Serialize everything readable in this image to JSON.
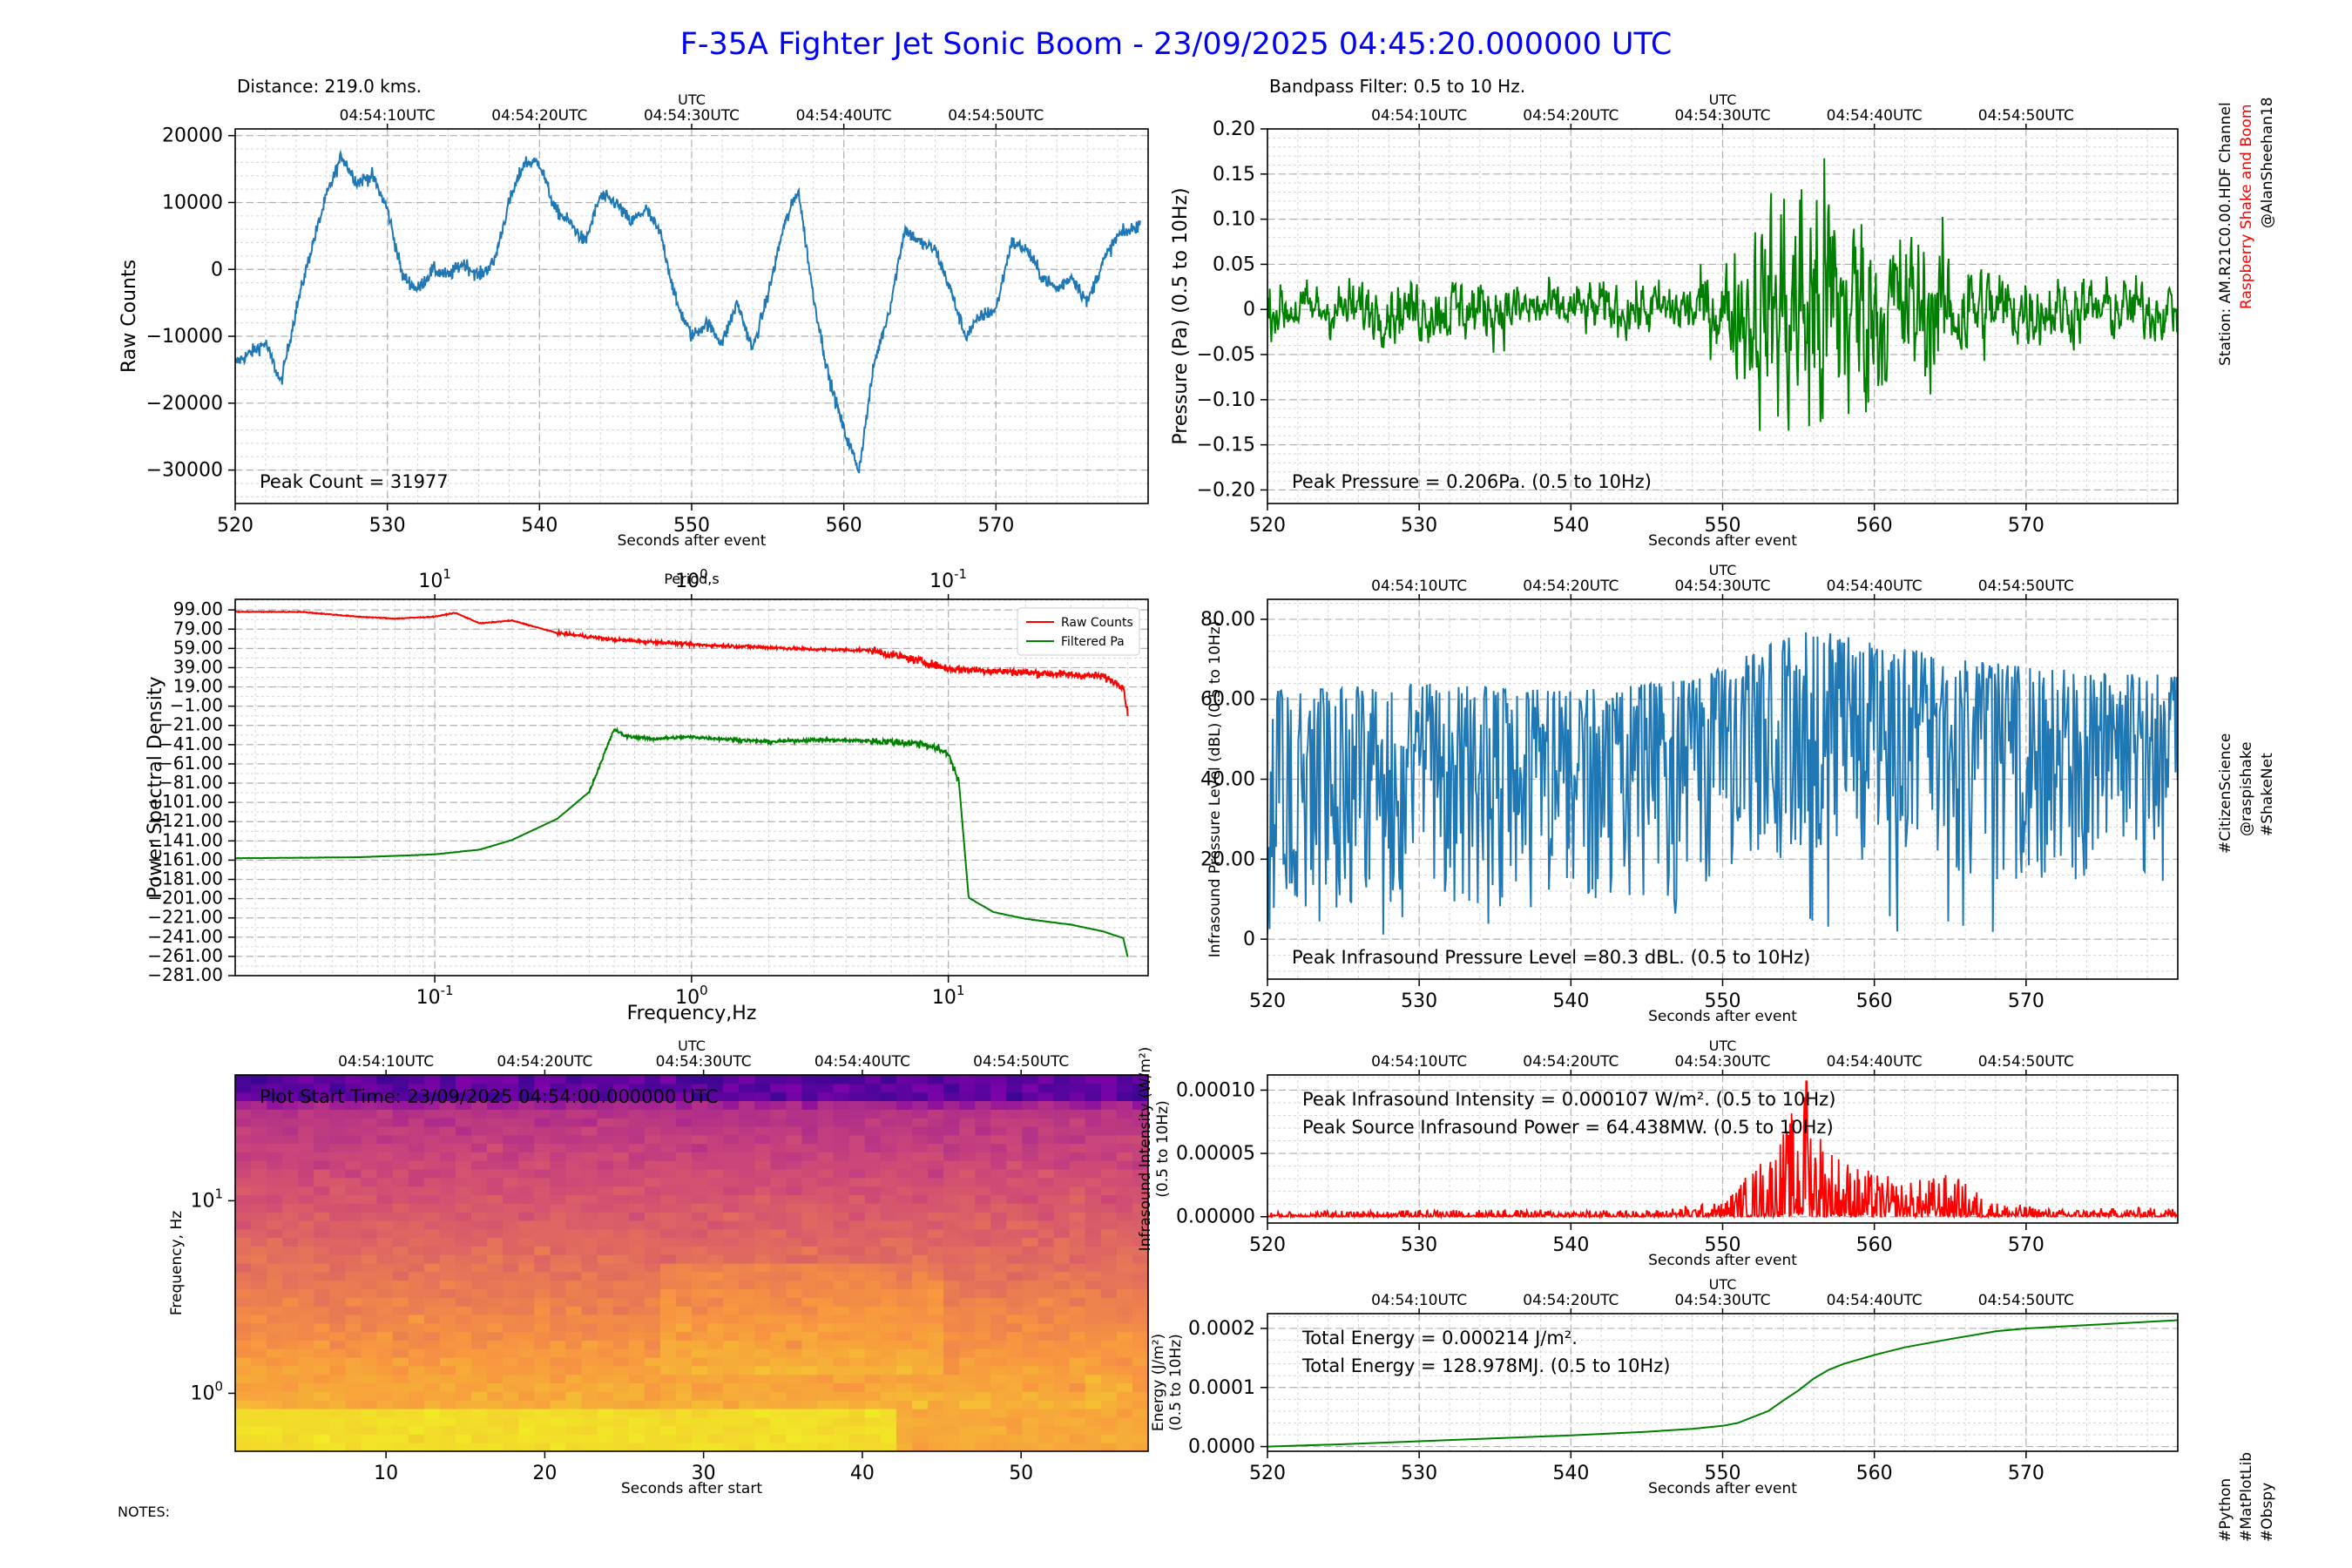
{
  "title": "F-35A Fighter Jet Sonic Boom - 23/09/2025 04:45:20.000000 UTC",
  "side_text": {
    "station": "Station: AM.R21C0.00.HDF Channel",
    "brand": "Raspberry Shake and Boom",
    "handle": "@AlanSheehan18",
    "hashtags_mid": [
      "#CitizenScience",
      "@raspishake",
      "#ShakeNet"
    ],
    "hashtags_bottom": [
      "#Python",
      "#MatPlotLib",
      "#Obspy"
    ]
  },
  "notes": "NOTES:",
  "colors": {
    "title": "#0000ff",
    "blue": "#1f77b4",
    "green": "#008000",
    "red": "#ff0000",
    "brand": "#ff0000"
  },
  "chart_data": [
    {
      "id": "raw",
      "type": "line",
      "top_label": "Distance: 219.0 kms.",
      "xlabel": "Seconds after event",
      "ylabel": "Raw Counts",
      "top_axis_label": "UTC",
      "top_ticks": [
        "04:54:10UTC",
        "04:54:20UTC",
        "04:54:30UTC",
        "04:54:40UTC",
        "04:54:50UTC"
      ],
      "top_tick_positions": [
        530,
        540,
        550,
        560,
        570
      ],
      "xlim": [
        520,
        580
      ],
      "ylim": [
        -35000,
        21000
      ],
      "xticks": [
        520,
        530,
        540,
        550,
        560,
        570
      ],
      "yticks": [
        -30000,
        -20000,
        -10000,
        0,
        10000,
        20000
      ],
      "annotation": "Peak Count = 31977",
      "color": "#1f77b4",
      "series": [
        {
          "x": [
            520,
            522,
            523,
            524,
            525,
            526,
            527,
            528,
            529,
            530,
            531,
            532,
            533,
            534,
            535,
            536,
            537,
            538,
            539,
            540,
            541,
            542,
            543,
            544,
            545,
            546,
            547,
            548,
            549,
            550,
            551,
            552,
            553,
            554,
            555,
            556,
            557,
            558,
            559,
            560,
            561,
            562,
            563,
            564,
            565,
            566,
            567,
            568,
            569,
            570,
            571,
            572,
            573,
            574,
            575,
            576,
            577,
            578,
            579,
            580
          ],
          "values": [
            -14000,
            -11000,
            -17000,
            -6000,
            3000,
            11000,
            17000,
            13000,
            14000,
            9000,
            -1000,
            -3000,
            0,
            -1000,
            1000,
            -1000,
            1000,
            10000,
            16000,
            16000,
            9000,
            7000,
            4000,
            11000,
            10000,
            7000,
            9000,
            5000,
            -5000,
            -10000,
            -8000,
            -11000,
            -5000,
            -12000,
            -4000,
            6000,
            12000,
            -4000,
            -16000,
            -24000,
            -30000,
            -14000,
            -6000,
            6000,
            4000,
            3000,
            -3000,
            -10000,
            -7000,
            -6000,
            4000,
            3000,
            -1000,
            -3000,
            -1000,
            -5000,
            1000,
            5000,
            6000,
            8000
          ]
        }
      ]
    },
    {
      "id": "filtered",
      "type": "line",
      "top_label": "Bandpass Filter: 0.5 to 10 Hz.",
      "xlabel": "Seconds after event",
      "ylabel": "Pressure (Pa) (0.5 to 10Hz)",
      "top_axis_label": "UTC",
      "top_ticks": [
        "04:54:10UTC",
        "04:54:20UTC",
        "04:54:30UTC",
        "04:54:40UTC",
        "04:54:50UTC"
      ],
      "top_tick_positions": [
        530,
        540,
        550,
        560,
        570
      ],
      "xlim": [
        520,
        580
      ],
      "ylim": [
        -0.215,
        0.2
      ],
      "xticks": [
        520,
        530,
        540,
        550,
        560,
        570
      ],
      "yticks": [
        -0.2,
        -0.15,
        -0.1,
        -0.05,
        0.0,
        0.05,
        0.1,
        0.15,
        0.2
      ],
      "annotation": "Peak Pressure = 0.206Pa. (0.5 to 10Hz)",
      "color": "#008000",
      "envelope": {
        "x": [
          520,
          528,
          532,
          540,
          546,
          550,
          552,
          554,
          556,
          558,
          560,
          562,
          565,
          568,
          572,
          580
        ],
        "values": [
          0.03,
          0.035,
          0.04,
          0.03,
          0.035,
          0.05,
          0.11,
          0.15,
          0.2,
          0.15,
          0.11,
          0.1,
          0.08,
          0.05,
          0.04,
          0.035
        ]
      }
    },
    {
      "id": "psd",
      "type": "line",
      "log_x": true,
      "xlabel": "Frequency,Hz",
      "ylabel": "Power Spectral Density",
      "top_axis_label": "Period,s",
      "top_ticks": [
        "10^1",
        "10^0",
        "10^-1"
      ],
      "top_tick_positions": [
        0.1,
        1,
        10
      ],
      "xlim": [
        0.0167,
        60
      ],
      "ylim": [
        -281,
        110
      ],
      "xticks": [
        0.1,
        1,
        10
      ],
      "xtick_labels": [
        "10^-1",
        "10^0",
        "10^1"
      ],
      "yticks": [
        99,
        79,
        59,
        39,
        19,
        -1,
        -21,
        -41,
        -61,
        -81,
        -101,
        -121,
        -141,
        -161,
        -181,
        -201,
        -221,
        -241,
        -261,
        -281
      ],
      "legend": {
        "position": "upper right",
        "entries": [
          "Raw Counts",
          "Filtered Pa"
        ]
      },
      "series": [
        {
          "name": "Raw Counts",
          "color": "#ff0000",
          "x": [
            0.0167,
            0.03,
            0.05,
            0.07,
            0.1,
            0.12,
            0.15,
            0.2,
            0.3,
            0.5,
            0.8,
            1.0,
            2.0,
            3.0,
            5.0,
            8.0,
            10.0,
            20.0,
            40.0,
            48.0,
            50.0
          ],
          "values": [
            97,
            97,
            92,
            90,
            92,
            96,
            85,
            88,
            75,
            68,
            65,
            63,
            60,
            58,
            57,
            45,
            38,
            34,
            30,
            20,
            -10
          ]
        },
        {
          "name": "Filtered Pa",
          "color": "#008000",
          "x": [
            0.0167,
            0.05,
            0.1,
            0.15,
            0.2,
            0.3,
            0.4,
            0.45,
            0.5,
            0.55,
            0.7,
            1.0,
            2.0,
            3.0,
            5.0,
            8.0,
            10.0,
            11.0,
            12.0,
            15.0,
            20.0,
            30.0,
            40.0,
            48.0,
            50.0
          ],
          "values": [
            -159,
            -158,
            -155,
            -150,
            -140,
            -118,
            -90,
            -55,
            -25,
            -32,
            -35,
            -33,
            -38,
            -36,
            -37,
            -40,
            -50,
            -80,
            -200,
            -215,
            -222,
            -228,
            -235,
            -242,
            -262
          ]
        }
      ]
    },
    {
      "id": "ipl",
      "type": "line",
      "xlabel": "Seconds after event",
      "ylabel": "Infrasound Pressure Level (dBL) (0.5 to 10Hz)",
      "top_axis_label": "UTC",
      "top_ticks": [
        "04:54:10UTC",
        "04:54:20UTC",
        "04:54:30UTC",
        "04:54:40UTC",
        "04:54:50UTC"
      ],
      "top_tick_positions": [
        530,
        540,
        550,
        560,
        570
      ],
      "xlim": [
        520,
        580
      ],
      "ylim": [
        -10,
        85
      ],
      "xticks": [
        520,
        530,
        540,
        550,
        560,
        570
      ],
      "yticks": [
        0,
        20,
        40,
        60,
        80
      ],
      "annotation": "Peak Infrasound Pressure Level =80.3 dBL. (0.5 to 10Hz)",
      "color": "#1f77b4",
      "envelope": {
        "x": [
          520,
          530,
          540,
          548,
          552,
          556,
          560,
          565,
          570,
          580
        ],
        "values": [
          64,
          66,
          64,
          67,
          74,
          80,
          76,
          73,
          70,
          68
        ]
      }
    },
    {
      "id": "spectrogram",
      "type": "heatmap",
      "log_y": true,
      "xlabel": "Seconds after start",
      "ylabel": "Frequency, Hz",
      "annotation": "Plot Start Time:  23/09/2025 04:54:00.000000 UTC",
      "top_axis_label": "UTC",
      "top_ticks": [
        "04:54:10UTC",
        "04:54:20UTC",
        "04:54:30UTC",
        "04:54:40UTC",
        "04:54:50UTC"
      ],
      "top_tick_positions": [
        10,
        20,
        30,
        40,
        50
      ],
      "xlim": [
        0.5,
        58
      ],
      "ylim": [
        0.5,
        45
      ],
      "xticks": [
        10,
        20,
        30,
        40,
        50
      ],
      "yticks": [
        1,
        10
      ],
      "ytick_labels": [
        "10^0",
        "10^1"
      ],
      "colormap": "plasma"
    },
    {
      "id": "intensity",
      "type": "line",
      "xlabel": "Seconds after event",
      "ylabel": "Infrasound Intensity (W/m²) (0.5 to 10Hz)",
      "top_axis_label": "UTC",
      "top_ticks": [
        "04:54:10UTC",
        "04:54:20UTC",
        "04:54:30UTC",
        "04:54:40UTC",
        "04:54:50UTC"
      ],
      "top_tick_positions": [
        530,
        540,
        550,
        560,
        570
      ],
      "xlim": [
        520,
        580
      ],
      "ylim": [
        -5e-06,
        0.000112
      ],
      "xticks": [
        520,
        530,
        540,
        550,
        560,
        570
      ],
      "yticks": [
        0,
        5e-05,
        0.0001
      ],
      "ytick_labels": [
        "0.00000",
        "0.00005",
        "0.00010"
      ],
      "annotations": [
        "Peak Infrasound Intensity = 0.000107 W/m². (0.5 to 10Hz)",
        "Peak Source Infrasound Power = 64.438MW. (0.5 to 10Hz)"
      ],
      "color": "#ff0000",
      "envelope": {
        "x": [
          520,
          535,
          545,
          550,
          552,
          554,
          555.5,
          557,
          559,
          562,
          565,
          568,
          572,
          580
        ],
        "values": [
          4e-06,
          6e-06,
          5e-06,
          1.2e-05,
          4e-05,
          7e-05,
          0.000107,
          6e-05,
          4e-05,
          2.8e-05,
          3.5e-05,
          1.2e-05,
          6e-06,
          8e-06
        ]
      }
    },
    {
      "id": "energy",
      "type": "line",
      "xlabel": "Seconds after event",
      "ylabel": "Energy (J/m²) (0.5 to 10Hz)",
      "top_axis_label": "UTC",
      "top_ticks": [
        "04:54:10UTC",
        "04:54:20UTC",
        "04:54:30UTC",
        "04:54:40UTC",
        "04:54:50UTC"
      ],
      "top_tick_positions": [
        530,
        540,
        550,
        560,
        570
      ],
      "xlim": [
        520,
        580
      ],
      "ylim": [
        -8e-06,
        0.000225
      ],
      "xticks": [
        520,
        530,
        540,
        550,
        560,
        570
      ],
      "yticks": [
        0,
        0.0001,
        0.0002
      ],
      "ytick_labels": [
        "0.0000",
        "0.0001",
        "0.0002"
      ],
      "annotations": [
        "Total Energy = 0.000214 J/m².",
        "Total Energy = 128.978MJ. (0.5 to 10Hz)"
      ],
      "color": "#008000",
      "series": [
        {
          "x": [
            520,
            525,
            530,
            535,
            540,
            545,
            548,
            550,
            551,
            552,
            553,
            554,
            555,
            556,
            557,
            558,
            560,
            562,
            565,
            568,
            570,
            575,
            580
          ],
          "values": [
            0,
            4e-06,
            9e-06,
            1.4e-05,
            1.9e-05,
            2.5e-05,
            3e-05,
            3.5e-05,
            4e-05,
            5e-05,
            6e-05,
            7.8e-05,
            9.5e-05,
            0.000115,
            0.00013,
            0.00014,
            0.000155,
            0.000168,
            0.000182,
            0.000195,
            0.0002,
            0.000207,
            0.000214
          ]
        }
      ]
    }
  ]
}
